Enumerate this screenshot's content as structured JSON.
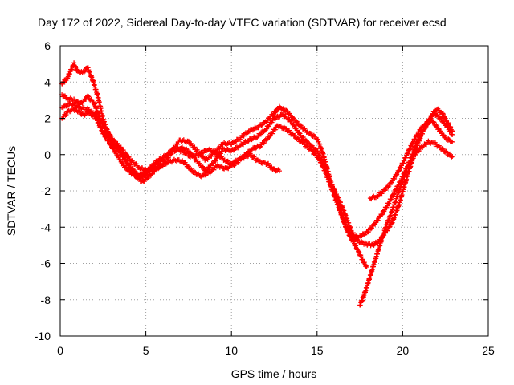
{
  "chart_data": {
    "type": "scatter",
    "title": "Day 172 of 2022, Sidereal Day-to-day VTEC variation (SDTVAR) for receiver ecsd",
    "xlabel": "GPS time / hours",
    "ylabel": "SDTVAR / TECUs",
    "xlim": [
      0,
      25
    ],
    "ylim": [
      -10,
      6
    ],
    "x_ticks": [
      0,
      5,
      10,
      15,
      20,
      25
    ],
    "x_tick_labels": [
      "0",
      "5",
      "10",
      "15",
      "20",
      "25"
    ],
    "y_ticks": [
      -10,
      -8,
      -6,
      -4,
      -2,
      0,
      2,
      4,
      6
    ],
    "y_tick_labels": [
      "-10",
      "-8",
      "-6",
      "-4",
      "-2",
      "0",
      "2",
      "4",
      "6"
    ],
    "grid": true,
    "marker": "+",
    "color": "#ff0000",
    "series": [
      {
        "name": "trace-1",
        "points": [
          [
            0.1,
            3.9
          ],
          [
            0.4,
            4.2
          ],
          [
            0.8,
            5.0
          ],
          [
            1.0,
            4.6
          ],
          [
            1.3,
            4.5
          ],
          [
            1.6,
            4.8
          ],
          [
            1.9,
            4.1
          ],
          [
            2.2,
            3.2
          ],
          [
            2.5,
            2.0
          ],
          [
            2.8,
            1.2
          ],
          [
            3.1,
            0.6
          ],
          [
            3.5,
            0.2
          ],
          [
            3.9,
            -0.4
          ],
          [
            4.3,
            -0.9
          ],
          [
            4.7,
            -1.3
          ],
          [
            5.1,
            -1.0
          ],
          [
            5.5,
            -0.6
          ],
          [
            6.0,
            -0.2
          ],
          [
            6.5,
            0.2
          ],
          [
            7.0,
            0.8
          ],
          [
            7.5,
            0.7
          ],
          [
            8.0,
            0.2
          ],
          [
            8.5,
            -0.3
          ],
          [
            9.0,
            0.1
          ],
          [
            9.5,
            0.6
          ],
          [
            10.0,
            0.6
          ],
          [
            10.5,
            0.9
          ],
          [
            11.0,
            1.3
          ],
          [
            11.5,
            1.5
          ],
          [
            12.0,
            1.8
          ],
          [
            12.5,
            2.3
          ],
          [
            12.8,
            2.6
          ],
          [
            13.2,
            2.4
          ],
          [
            13.6,
            2.0
          ],
          [
            14.0,
            1.6
          ],
          [
            14.5,
            1.2
          ],
          [
            15.0,
            0.9
          ],
          [
            15.3,
            0.2
          ],
          [
            15.6,
            -0.8
          ],
          [
            15.9,
            -1.8
          ],
          [
            16.2,
            -2.6
          ],
          [
            16.5,
            -3.5
          ],
          [
            16.8,
            -4.3
          ],
          [
            17.1,
            -4.8
          ],
          [
            17.4,
            -5.3
          ],
          [
            17.7,
            -5.9
          ],
          [
            17.9,
            -6.2
          ]
        ]
      },
      {
        "name": "trace-2",
        "points": [
          [
            0.1,
            3.3
          ],
          [
            0.4,
            3.1
          ],
          [
            0.8,
            3.0
          ],
          [
            1.2,
            2.8
          ],
          [
            1.6,
            3.2
          ],
          [
            2.0,
            2.8
          ],
          [
            2.4,
            1.8
          ],
          [
            2.8,
            1.0
          ],
          [
            3.2,
            0.5
          ],
          [
            3.6,
            0.0
          ],
          [
            4.0,
            -0.6
          ],
          [
            4.4,
            -1.2
          ],
          [
            4.8,
            -1.5
          ],
          [
            5.2,
            -1.2
          ],
          [
            5.6,
            -0.8
          ],
          [
            6.0,
            -0.5
          ],
          [
            6.5,
            0.1
          ],
          [
            7.0,
            0.4
          ],
          [
            7.5,
            0.2
          ],
          [
            8.0,
            -0.4
          ],
          [
            8.5,
            -0.9
          ],
          [
            9.0,
            -0.4
          ],
          [
            9.5,
            0.3
          ],
          [
            10.0,
            0.2
          ],
          [
            10.5,
            0.5
          ],
          [
            11.0,
            0.8
          ],
          [
            11.5,
            1.0
          ],
          [
            12.0,
            1.4
          ],
          [
            12.5,
            2.0
          ],
          [
            13.0,
            2.2
          ],
          [
            13.5,
            1.8
          ],
          [
            14.0,
            1.1
          ],
          [
            14.5,
            0.6
          ],
          [
            15.0,
            0.2
          ],
          [
            15.4,
            -0.6
          ],
          [
            15.8,
            -1.6
          ],
          [
            16.2,
            -2.3
          ],
          [
            16.6,
            -3.2
          ],
          [
            17.0,
            -4.2
          ],
          [
            17.4,
            -4.8
          ],
          [
            17.8,
            -4.9
          ],
          [
            18.2,
            -5.0
          ],
          [
            18.6,
            -4.8
          ],
          [
            19.0,
            -4.3
          ],
          [
            19.4,
            -3.7
          ],
          [
            19.8,
            -2.7
          ],
          [
            20.2,
            -1.4
          ],
          [
            20.6,
            -0.2
          ],
          [
            21.0,
            0.9
          ],
          [
            21.4,
            1.7
          ],
          [
            21.8,
            2.3
          ],
          [
            22.2,
            2.0
          ],
          [
            22.6,
            1.5
          ],
          [
            22.9,
            1.1
          ]
        ]
      },
      {
        "name": "trace-3",
        "points": [
          [
            0.1,
            2.0
          ],
          [
            0.5,
            2.4
          ],
          [
            0.9,
            2.5
          ],
          [
            1.3,
            2.2
          ],
          [
            1.7,
            2.3
          ],
          [
            2.1,
            2.0
          ],
          [
            2.5,
            1.2
          ],
          [
            2.9,
            0.6
          ],
          [
            3.3,
            0.0
          ],
          [
            3.7,
            -0.6
          ],
          [
            4.1,
            -1.0
          ],
          [
            4.5,
            -1.2
          ],
          [
            4.9,
            -1.0
          ],
          [
            5.3,
            -0.8
          ],
          [
            5.8,
            -0.7
          ],
          [
            6.3,
            -0.4
          ],
          [
            6.8,
            -0.3
          ],
          [
            7.2,
            -0.4
          ],
          [
            7.7,
            -0.9
          ],
          [
            8.2,
            -1.2
          ],
          [
            8.7,
            -1.0
          ],
          [
            9.2,
            -0.6
          ],
          [
            9.7,
            -0.8
          ],
          [
            10.2,
            -0.4
          ],
          [
            10.7,
            -0.1
          ],
          [
            11.2,
            0.3
          ],
          [
            11.7,
            0.5
          ],
          [
            12.2,
            1.0
          ],
          [
            12.7,
            1.6
          ],
          [
            13.2,
            1.4
          ],
          [
            13.7,
            1.0
          ],
          [
            14.2,
            0.6
          ],
          [
            14.7,
            0.2
          ],
          [
            15.1,
            -0.2
          ],
          [
            15.5,
            -1.0
          ],
          [
            15.9,
            -2.0
          ],
          [
            16.3,
            -3.0
          ],
          [
            16.7,
            -4.0
          ],
          [
            17.1,
            -4.6
          ],
          [
            17.5,
            -4.5
          ],
          [
            17.9,
            -4.3
          ],
          [
            18.3,
            -3.9
          ],
          [
            18.7,
            -3.4
          ],
          [
            19.1,
            -2.8
          ],
          [
            19.5,
            -2.1
          ],
          [
            19.9,
            -1.4
          ],
          [
            20.3,
            -0.6
          ],
          [
            20.7,
            0.0
          ],
          [
            21.1,
            0.4
          ],
          [
            21.5,
            0.7
          ],
          [
            21.9,
            0.6
          ],
          [
            22.3,
            0.3
          ],
          [
            22.7,
            0.0
          ],
          [
            22.9,
            -0.1
          ]
        ]
      },
      {
        "name": "trace-4",
        "points": [
          [
            0.1,
            2.6
          ],
          [
            0.6,
            2.8
          ],
          [
            1.1,
            2.6
          ],
          [
            1.6,
            2.5
          ],
          [
            2.1,
            2.2
          ],
          [
            2.6,
            1.5
          ],
          [
            3.1,
            0.8
          ],
          [
            3.6,
            0.3
          ],
          [
            4.1,
            -0.3
          ],
          [
            4.6,
            -0.7
          ],
          [
            5.1,
            -0.9
          ],
          [
            5.6,
            -0.4
          ],
          [
            6.1,
            -0.1
          ],
          [
            6.6,
            0.3
          ],
          [
            7.1,
            0.2
          ],
          [
            7.6,
            -0.1
          ],
          [
            8.1,
            0.0
          ],
          [
            8.6,
            0.3
          ],
          [
            9.1,
            0.1
          ],
          [
            9.6,
            -0.3
          ],
          [
            10.1,
            -0.6
          ],
          [
            10.6,
            -0.2
          ],
          [
            11.1,
            0.0
          ],
          [
            11.6,
            -0.4
          ],
          [
            12.1,
            -0.5
          ],
          [
            12.4,
            -0.8
          ],
          [
            12.8,
            -0.9
          ]
        ]
      },
      {
        "name": "trace-5",
        "points": [
          [
            17.5,
            -8.3
          ],
          [
            17.8,
            -7.6
          ],
          [
            18.1,
            -6.7
          ],
          [
            18.4,
            -5.8
          ],
          [
            18.7,
            -4.9
          ],
          [
            19.0,
            -4.0
          ],
          [
            19.3,
            -3.3
          ],
          [
            19.6,
            -2.5
          ],
          [
            19.9,
            -1.7
          ],
          [
            20.2,
            -0.9
          ],
          [
            20.5,
            -0.1
          ],
          [
            20.8,
            0.6
          ],
          [
            21.1,
            1.2
          ],
          [
            21.4,
            1.6
          ],
          [
            21.7,
            2.1
          ],
          [
            22.0,
            2.5
          ],
          [
            22.3,
            2.3
          ],
          [
            22.6,
            1.8
          ],
          [
            22.9,
            1.3
          ]
        ]
      },
      {
        "name": "trace-6",
        "points": [
          [
            18.1,
            -2.4
          ],
          [
            18.5,
            -2.3
          ],
          [
            18.9,
            -2.0
          ],
          [
            19.3,
            -1.6
          ],
          [
            19.7,
            -1.0
          ],
          [
            20.1,
            -0.3
          ],
          [
            20.5,
            0.5
          ],
          [
            20.9,
            1.2
          ],
          [
            21.3,
            1.7
          ],
          [
            21.7,
            1.9
          ],
          [
            22.1,
            1.4
          ],
          [
            22.5,
            0.9
          ],
          [
            22.9,
            0.7
          ]
        ]
      }
    ]
  }
}
